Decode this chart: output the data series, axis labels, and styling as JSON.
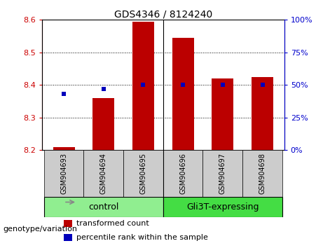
{
  "title": "GDS4346 / 8124240",
  "samples": [
    "GSM904693",
    "GSM904694",
    "GSM904695",
    "GSM904696",
    "GSM904697",
    "GSM904698"
  ],
  "transformed_counts": [
    8.21,
    8.36,
    8.595,
    8.545,
    8.42,
    8.425
  ],
  "percentile_ranks": [
    43,
    47,
    50,
    50,
    50,
    50
  ],
  "ylim_left": [
    8.2,
    8.6
  ],
  "ylim_right": [
    0,
    100
  ],
  "yticks_left": [
    8.2,
    8.3,
    8.4,
    8.5,
    8.6
  ],
  "yticks_right": [
    0,
    25,
    50,
    75,
    100
  ],
  "groups": [
    {
      "label": "control",
      "indices": [
        0,
        1,
        2
      ],
      "color": "#90EE90"
    },
    {
      "label": "Gli3T-expressing",
      "indices": [
        3,
        4,
        5
      ],
      "color": "#44DD44"
    }
  ],
  "bar_color": "#BB0000",
  "dot_color": "#0000BB",
  "bar_baseline": 8.2,
  "bar_width": 0.55,
  "grid_color": "#000000",
  "bg_plot": "#ffffff",
  "sample_bg": "#cccccc",
  "legend_items": [
    "transformed count",
    "percentile rank within the sample"
  ],
  "legend_colors": [
    "#BB0000",
    "#0000BB"
  ],
  "genotype_label": "genotype/variation",
  "left_axis_color": "#CC0000",
  "right_axis_color": "#0000CC",
  "font_size_title": 10,
  "font_size_ticks": 8,
  "font_size_sample": 7,
  "font_size_group": 9,
  "font_size_legend": 8,
  "font_size_genotype": 8,
  "separator_x": 2.5,
  "xlim": [
    -0.55,
    5.55
  ]
}
